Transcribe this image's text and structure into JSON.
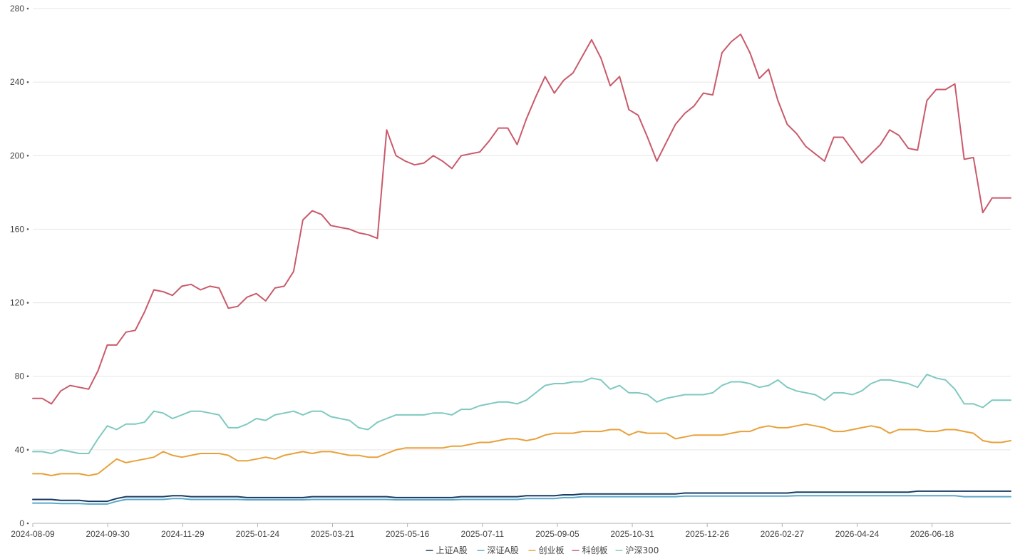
{
  "chart_data": {
    "type": "line",
    "title": "",
    "xlabel": "",
    "ylabel": "",
    "ylim": [
      0,
      280
    ],
    "yticks": [
      0,
      40,
      80,
      120,
      160,
      200,
      240,
      280
    ],
    "grid": "horizontal",
    "legend_position": "bottom-center",
    "x_tick_labels": [
      "2024-08-09",
      "2024-09-30",
      "2024-11-29",
      "2025-01-24",
      "2025-03-21",
      "2025-05-16",
      "2025-07-11",
      "2025-09-05",
      "2025-10-31",
      "2025-12-26",
      "2026-02-27",
      "2026-04-24",
      "2026-06-18"
    ],
    "points_per_series": 106,
    "series": [
      {
        "name": "上证A股",
        "color": "#1a3d63",
        "values": [
          13,
          13,
          13,
          12.5,
          12.5,
          12.5,
          12,
          12,
          12,
          13.5,
          14.5,
          14.5,
          14.5,
          14.5,
          14.5,
          15,
          15,
          14.5,
          14.5,
          14.5,
          14.5,
          14.5,
          14.5,
          14,
          14,
          14,
          14,
          14,
          14,
          14,
          14.5,
          14.5,
          14.5,
          14.5,
          14.5,
          14.5,
          14.5,
          14.5,
          14.5,
          14,
          14,
          14,
          14,
          14,
          14,
          14,
          14.5,
          14.5,
          14.5,
          14.5,
          14.5,
          14.5,
          14.5,
          15,
          15,
          15,
          15,
          15.5,
          15.5,
          16,
          16,
          16,
          16,
          16,
          16,
          16,
          16,
          16,
          16,
          16,
          16.5,
          16.5,
          16.5,
          16.5,
          16.5,
          16.5,
          16.5,
          16.5,
          16.5,
          16.5,
          16.5,
          16.5,
          17,
          17,
          17,
          17,
          17,
          17,
          17,
          17,
          17,
          17,
          17,
          17,
          17,
          17.5,
          17.5,
          17.5,
          17.5,
          17.5,
          17.5,
          17.5,
          17.5,
          17.5,
          17.5,
          17.5
        ]
      },
      {
        "name": "深证A股",
        "color": "#5aa8c9",
        "values": [
          11,
          11,
          11,
          10.8,
          10.8,
          10.8,
          10.5,
          10.5,
          10.5,
          12,
          13,
          13,
          13,
          13,
          13,
          13.5,
          13.5,
          13,
          13,
          13,
          13,
          13,
          13,
          12.8,
          12.8,
          12.8,
          12.8,
          12.8,
          12.8,
          12.8,
          13,
          13,
          13,
          13,
          13,
          13,
          13,
          13,
          13,
          12.8,
          12.8,
          12.8,
          12.8,
          12.8,
          12.8,
          12.8,
          13,
          13,
          13,
          13,
          13,
          13,
          13,
          13.5,
          13.5,
          13.5,
          13.5,
          14,
          14,
          14.5,
          14.5,
          14.5,
          14.5,
          14.5,
          14.5,
          14.5,
          14.5,
          14.5,
          14.5,
          14.5,
          14.8,
          14.8,
          14.8,
          14.8,
          14.8,
          14.8,
          14.8,
          14.8,
          14.8,
          14.8,
          14.8,
          14.8,
          15,
          15,
          15,
          15,
          15,
          15,
          15,
          15,
          15,
          15,
          15,
          15,
          15,
          15,
          15,
          15,
          15,
          15,
          14.5,
          14.5,
          14.5,
          14.5,
          14.5,
          14.5
        ]
      },
      {
        "name": "创业板",
        "color": "#e8a13a",
        "values": [
          27,
          27,
          26,
          27,
          27,
          27,
          26,
          27,
          31,
          35,
          33,
          34,
          35,
          36,
          39,
          37,
          36,
          37,
          38,
          38,
          38,
          37,
          34,
          34,
          35,
          36,
          35,
          37,
          38,
          39,
          38,
          39,
          39,
          38,
          37,
          37,
          36,
          36,
          38,
          40,
          41,
          41,
          41,
          41,
          41,
          42,
          42,
          43,
          44,
          44,
          45,
          46,
          46,
          45,
          46,
          48,
          49,
          49,
          49,
          50,
          50,
          50,
          51,
          51,
          48,
          50,
          49,
          49,
          49,
          46,
          47,
          48,
          48,
          48,
          48,
          49,
          50,
          50,
          52,
          53,
          52,
          52,
          53,
          54,
          53,
          52,
          50,
          50,
          51,
          52,
          53,
          52,
          49,
          51,
          51,
          51,
          50,
          50,
          51,
          51,
          50,
          49,
          45,
          44,
          44,
          45
        ]
      },
      {
        "name": "科创板",
        "color": "#c95a6b",
        "values": [
          68,
          68,
          65,
          72,
          75,
          74,
          73,
          83,
          97,
          97,
          104,
          105,
          115,
          127,
          126,
          124,
          129,
          130,
          127,
          129,
          128,
          117,
          118,
          123,
          125,
          121,
          128,
          129,
          137,
          165,
          170,
          168,
          162,
          161,
          160,
          158,
          157,
          155,
          214,
          200,
          197,
          195,
          196,
          200,
          197,
          193,
          200,
          201,
          202,
          208,
          215,
          215,
          206,
          220,
          232,
          243,
          234,
          241,
          245,
          254,
          263,
          253,
          238,
          243,
          225,
          222,
          210,
          197,
          207,
          217,
          223,
          227,
          234,
          233,
          256,
          262,
          266,
          256,
          242,
          247,
          230,
          217,
          212,
          205,
          201,
          197,
          210,
          210,
          203,
          196,
          201,
          206,
          214,
          211,
          204,
          203,
          230,
          236,
          236,
          239,
          198,
          199,
          169,
          177,
          177,
          177
        ]
      },
      {
        "name": "沪深300",
        "color": "#7fc9c0",
        "values": [
          39,
          39,
          38,
          40,
          39,
          38,
          38,
          46,
          53,
          51,
          54,
          54,
          55,
          61,
          60,
          57,
          59,
          61,
          61,
          60,
          59,
          52,
          52,
          54,
          57,
          56,
          59,
          60,
          61,
          59,
          61,
          61,
          58,
          57,
          56,
          52,
          51,
          55,
          57,
          59,
          59,
          59,
          59,
          60,
          60,
          59,
          62,
          62,
          64,
          65,
          66,
          66,
          65,
          67,
          71,
          75,
          76,
          76,
          77,
          77,
          79,
          78,
          73,
          75,
          71,
          71,
          70,
          66,
          68,
          69,
          70,
          70,
          70,
          71,
          75,
          77,
          77,
          76,
          74,
          75,
          78,
          74,
          72,
          71,
          70,
          67,
          71,
          71,
          70,
          72,
          76,
          78,
          78,
          77,
          76,
          74,
          81,
          79,
          78,
          73,
          65,
          65,
          63,
          67,
          67,
          67
        ]
      }
    ]
  }
}
